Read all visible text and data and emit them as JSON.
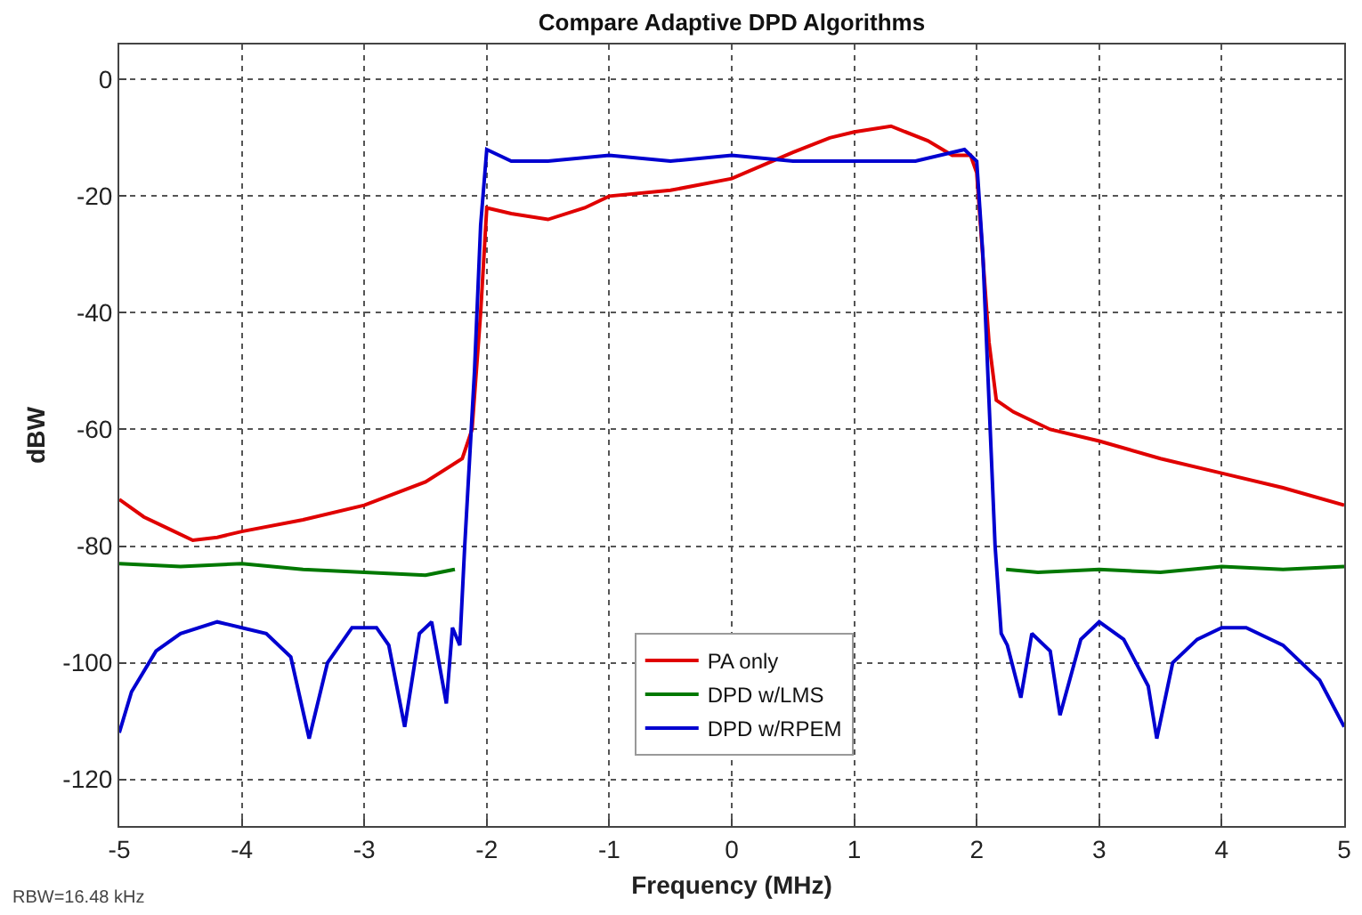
{
  "chart_data": {
    "type": "line",
    "title": "Compare Adaptive DPD Algorithms",
    "xlabel": "Frequency (MHz)",
    "ylabel": "dBW",
    "annotations": [
      "RBW=16.48 kHz"
    ],
    "xlim": [
      -5,
      5
    ],
    "xticks": [
      -5,
      -4,
      -3,
      -2,
      -1,
      0,
      1,
      2,
      3,
      4,
      5
    ],
    "ylim": [
      -128,
      6
    ],
    "yticks": [
      -120,
      -100,
      -80,
      -60,
      -40,
      -20,
      0
    ],
    "grid": true,
    "legend": "bottom",
    "line_style": "solid",
    "marker": "none",
    "series": [
      {
        "name": "PA only",
        "color": "#e00000",
        "x": [
          -5,
          -4.8,
          -4.6,
          -4.4,
          -4.2,
          -4,
          -3.5,
          -3,
          -2.5,
          -2.2,
          -2.12,
          -2.05,
          -2,
          -1.8,
          -1.5,
          -1.2,
          -1,
          -0.5,
          0,
          0.5,
          0.8,
          1,
          1.3,
          1.6,
          1.8,
          1.95,
          2.0,
          2.1,
          2.16,
          2.3,
          2.6,
          3,
          3.5,
          4,
          4.5,
          5
        ],
        "values": [
          -72,
          -75,
          -77,
          -79,
          -78.5,
          -77.5,
          -75.5,
          -73,
          -69,
          -65,
          -60,
          -40,
          -22,
          -23,
          -24,
          -22,
          -20,
          -19,
          -17,
          -12.5,
          -10,
          -9,
          -8,
          -10.5,
          -13,
          -13,
          -16,
          -45,
          -55,
          -57,
          -60,
          -62,
          -65,
          -67.5,
          -70,
          -73
        ]
      },
      {
        "name": "DPD w/LMS",
        "color": "#007800",
        "x": [
          -5,
          -4.5,
          -4,
          -3.5,
          -3,
          -2.5,
          -2.26,
          null,
          2.24,
          2.5,
          3,
          3.5,
          4,
          4.5,
          5
        ],
        "values": [
          -83,
          -83.5,
          -83,
          -84,
          -84.5,
          -85,
          -84,
          null,
          -84,
          -84.5,
          -84,
          -84.5,
          -83.5,
          -84,
          -83.5
        ]
      },
      {
        "name": "DPD w/RPEM",
        "color": "#0000d0",
        "x": [
          -5,
          -4.9,
          -4.7,
          -4.5,
          -4.2,
          -4,
          -3.8,
          -3.6,
          -3.45,
          -3.3,
          -3.1,
          -2.9,
          -2.8,
          -2.67,
          -2.55,
          -2.45,
          -2.33,
          -2.28,
          -2.22,
          -2.18,
          -2.1,
          -2.05,
          -2,
          -1.8,
          -1.5,
          -1,
          -0.5,
          0,
          0.5,
          1,
          1.5,
          1.9,
          2.0,
          2.05,
          2.1,
          2.15,
          2.2,
          2.25,
          2.36,
          2.45,
          2.6,
          2.68,
          2.85,
          3,
          3.2,
          3.4,
          3.47,
          3.6,
          3.8,
          4,
          4.2,
          4.5,
          4.8,
          5
        ],
        "values": [
          -112,
          -105,
          -98,
          -95,
          -93,
          -94,
          -95,
          -99,
          -113,
          -100,
          -94,
          -94,
          -97,
          -111,
          -95,
          -93,
          -107,
          -94,
          -97,
          -80,
          -50,
          -25,
          -12,
          -14,
          -14,
          -13,
          -14,
          -13,
          -14,
          -14,
          -14,
          -12,
          -14,
          -30,
          -55,
          -80,
          -95,
          -97,
          -106,
          -95,
          -98,
          -109,
          -96,
          -93,
          -96,
          -104,
          -113,
          -100,
          -96,
          -94,
          -94,
          -97,
          -103,
          -111
        ]
      }
    ]
  }
}
